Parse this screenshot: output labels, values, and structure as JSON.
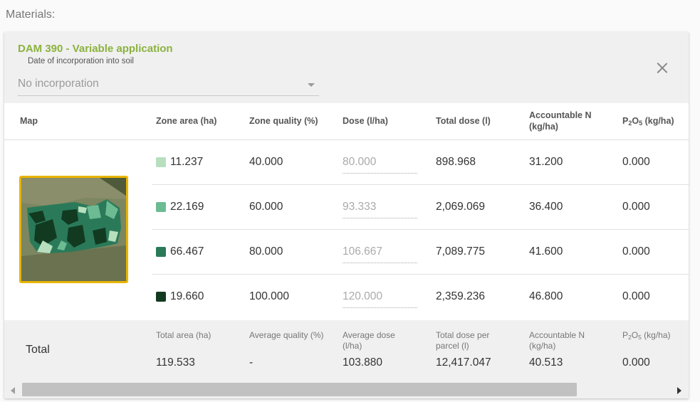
{
  "materials_label": "Materials:",
  "product": {
    "title": "DAM 390 - Variable application",
    "date_label": "Date of incorporation into soil",
    "incorporation_value": "No incorporation"
  },
  "table": {
    "headers": {
      "map": "Map",
      "zone_area": "Zone area (ha)",
      "zone_quality": "Zone quality (%)",
      "dose": "Dose (l/ha)",
      "total_dose": "Total dose (l)",
      "accountable_n_line1": "Accountable N",
      "accountable_n_line2": "(kg/ha)",
      "p2o5_p": "P",
      "p2o5_sub2": "2",
      "p2o5_o": "O",
      "p2o5_sub5": "5",
      "p2o5_unit": " (kg/ha)"
    },
    "rows": [
      {
        "zone_area": "11.237",
        "zone_quality": "40.000",
        "dose": "80.000",
        "total_dose": "898.968",
        "accountable_n": "31.200",
        "p2o5": "0.000",
        "color": "#b7dfbe"
      },
      {
        "zone_area": "22.169",
        "zone_quality": "60.000",
        "dose": "93.333",
        "total_dose": "2,069.069",
        "accountable_n": "36.400",
        "p2o5": "0.000",
        "color": "#6cbb93"
      },
      {
        "zone_area": "66.467",
        "zone_quality": "80.000",
        "dose": "106.667",
        "total_dose": "7,089.775",
        "accountable_n": "41.600",
        "p2o5": "0.000",
        "color": "#2a7a5a"
      },
      {
        "zone_area": "19.660",
        "zone_quality": "100.000",
        "dose": "120.000",
        "total_dose": "2,359.236",
        "accountable_n": "46.800",
        "p2o5": "0.000",
        "color": "#123a20"
      }
    ]
  },
  "totals": {
    "label": "Total",
    "total_area_label": "Total area (ha)",
    "average_quality_label": "Average quality (%)",
    "average_dose_label_1": "Average dose",
    "average_dose_label_2": "(l/ha)",
    "total_dose_label_1": "Total dose per",
    "total_dose_label_2": "parcel (l)",
    "accountable_n_label_1": "Accountable N",
    "accountable_n_label_2": "(kg/ha)",
    "p2o5_label_p": "P",
    "p2o5_label_sub2": "2",
    "p2o5_label_o": "O",
    "p2o5_label_sub5": "5",
    "p2o5_label_unit": " (kg/ha)",
    "total_area": "119.533",
    "average_quality": "-",
    "average_dose": "103.880",
    "total_dose": "12,417.047",
    "accountable_n": "40.513",
    "p2o5": "0.000"
  },
  "icons": {
    "close": "close-icon",
    "dropdown": "chevron-down-icon",
    "scroll_left": "arrow-left-icon",
    "scroll_right": "arrow-right-icon"
  },
  "colors": {
    "accent": "#8bb23f",
    "map_border": "#e8b400"
  }
}
